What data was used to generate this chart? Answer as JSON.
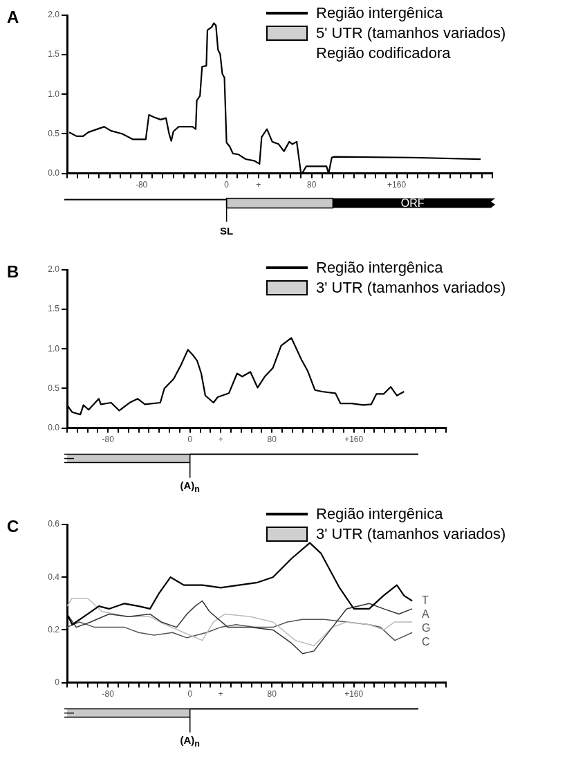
{
  "chart_data": [
    {
      "type": "line",
      "title": "A",
      "color": "#000000",
      "x": [
        -148,
        -141,
        -135,
        -130,
        -115,
        -109,
        -98,
        -88,
        -76,
        -73,
        -68,
        -62,
        -57,
        -54,
        -52,
        -50,
        -45,
        -32,
        -29,
        -28,
        -25,
        -23,
        -19,
        -18,
        -14,
        -12,
        -10,
        -8,
        -6,
        -4,
        -2,
        0,
        3,
        6,
        11,
        18,
        26,
        31,
        33,
        38,
        43,
        49,
        54,
        59,
        62,
        66,
        70,
        72,
        75,
        94,
        96,
        99,
        101,
        175,
        239
      ],
      "values": [
        0.52,
        0.47,
        0.47,
        0.52,
        0.59,
        0.54,
        0.5,
        0.43,
        0.43,
        0.74,
        0.71,
        0.68,
        0.7,
        0.5,
        0.41,
        0.53,
        0.59,
        0.59,
        0.56,
        0.92,
        0.98,
        1.35,
        1.36,
        1.81,
        1.85,
        1.9,
        1.87,
        1.56,
        1.51,
        1.26,
        1.21,
        0.39,
        0.34,
        0.25,
        0.24,
        0.18,
        0.16,
        0.12,
        0.46,
        0.56,
        0.4,
        0.37,
        0.28,
        0.4,
        0.37,
        0.4,
        0,
        0.02,
        0.09,
        0.09,
        0,
        0.2,
        0.21,
        0.2,
        0.18
      ],
      "xlim": [
        -150,
        250
      ],
      "xticks": [
        {
          "value": -150,
          "label": null
        },
        {
          "value": -140,
          "label": null
        },
        {
          "value": -130,
          "label": null
        },
        {
          "value": -120,
          "label": null
        },
        {
          "value": -110,
          "label": null
        },
        {
          "value": -100,
          "label": null
        },
        {
          "value": -90,
          "label": null
        },
        -80,
        {
          "value": -70,
          "label": null
        },
        {
          "value": -60,
          "label": null
        },
        {
          "value": -50,
          "label": null
        },
        {
          "value": -40,
          "label": null
        },
        {
          "value": -30,
          "label": null
        },
        {
          "value": -20,
          "label": null
        },
        {
          "value": -10,
          "label": null
        },
        0,
        {
          "value": 10,
          "label": null
        },
        {
          "value": 20,
          "label": null
        },
        {
          "value": 30,
          "label": "+"
        },
        {
          "value": 40,
          "label": null
        },
        {
          "value": 50,
          "label": null
        },
        {
          "value": 60,
          "label": null
        },
        {
          "value": 70,
          "label": null
        },
        80,
        {
          "value": 90,
          "label": null
        },
        {
          "value": 100,
          "label": null
        },
        {
          "value": 110,
          "label": null
        },
        {
          "value": 120,
          "label": null
        },
        {
          "value": 130,
          "label": null
        },
        {
          "value": 140,
          "label": null
        },
        {
          "value": 150,
          "label": null
        },
        {
          "value": 160,
          "label": "+160"
        },
        {
          "value": 170,
          "label": null
        },
        {
          "value": 180,
          "label": null
        },
        {
          "value": 190,
          "label": null
        },
        {
          "value": 200,
          "label": null
        },
        {
          "value": 210,
          "label": null
        },
        {
          "value": 220,
          "label": null
        },
        {
          "value": 230,
          "label": null
        },
        {
          "value": 240,
          "label": null
        },
        {
          "value": 250,
          "label": null
        }
      ],
      "ylim": [
        0,
        2
      ],
      "yticks": [
        {
          "value": 0,
          "label": "0.0"
        },
        0.5,
        {
          "value": 1,
          "label": "1.0"
        },
        1.5,
        {
          "value": 2,
          "label": "2.0"
        }
      ],
      "annotations": [
        "Região intergênica",
        "5' UTR (tamanhos variados)",
        "Região codificadora",
        "SL",
        "ORF"
      ]
    },
    {
      "type": "line",
      "title": "B",
      "color": "#000000",
      "x": [
        -120,
        -115,
        -107,
        -104,
        -99,
        -89,
        -87,
        -77,
        -69,
        -59,
        -51,
        -44,
        -29,
        -25,
        -16,
        -9,
        -2,
        3,
        7,
        11,
        15,
        23,
        27,
        38,
        46,
        51,
        59,
        66,
        73,
        81,
        89,
        99,
        109,
        115,
        122,
        129,
        142,
        147,
        158,
        169,
        177,
        182,
        189,
        196,
        202,
        209
      ],
      "values": [
        0.29,
        0.2,
        0.17,
        0.29,
        0.23,
        0.37,
        0.3,
        0.32,
        0.22,
        0.32,
        0.37,
        0.3,
        0.32,
        0.5,
        0.62,
        0.79,
        0.99,
        0.92,
        0.85,
        0.69,
        0.41,
        0.32,
        0.39,
        0.44,
        0.69,
        0.65,
        0.71,
        0.51,
        0.65,
        0.76,
        1.04,
        1.14,
        0.86,
        0.72,
        0.48,
        0.46,
        0.44,
        0.31,
        0.31,
        0.29,
        0.3,
        0.43,
        0.43,
        0.52,
        0.41,
        0.46
      ],
      "xlim": [
        -120,
        250
      ],
      "xticks": [
        {
          "value": -120,
          "label": null
        },
        {
          "value": -110,
          "label": null
        },
        {
          "value": -100,
          "label": null
        },
        {
          "value": -90,
          "label": null
        },
        -80,
        {
          "value": -70,
          "label": null
        },
        {
          "value": -60,
          "label": null
        },
        {
          "value": -50,
          "label": null
        },
        {
          "value": -40,
          "label": null
        },
        {
          "value": -30,
          "label": null
        },
        {
          "value": -20,
          "label": null
        },
        {
          "value": -10,
          "label": null
        },
        0,
        {
          "value": 10,
          "label": null
        },
        {
          "value": 20,
          "label": null
        },
        {
          "value": 30,
          "label": "+"
        },
        {
          "value": 40,
          "label": null
        },
        {
          "value": 50,
          "label": null
        },
        {
          "value": 60,
          "label": null
        },
        {
          "value": 70,
          "label": null
        },
        80,
        {
          "value": 90,
          "label": null
        },
        {
          "value": 100,
          "label": null
        },
        {
          "value": 110,
          "label": null
        },
        {
          "value": 120,
          "label": null
        },
        {
          "value": 130,
          "label": null
        },
        {
          "value": 140,
          "label": null
        },
        {
          "value": 150,
          "label": null
        },
        {
          "value": 160,
          "label": "+160"
        },
        {
          "value": 170,
          "label": null
        },
        {
          "value": 180,
          "label": null
        },
        {
          "value": 190,
          "label": null
        },
        {
          "value": 200,
          "label": null
        },
        {
          "value": 210,
          "label": null
        },
        {
          "value": 220,
          "label": null
        },
        {
          "value": 230,
          "label": null
        },
        {
          "value": 240,
          "label": null
        },
        {
          "value": 250,
          "label": null
        }
      ],
      "ylim": [
        0,
        2
      ],
      "yticks": [
        {
          "value": 0,
          "label": "0.0"
        },
        0.5,
        {
          "value": 1,
          "label": "1.0"
        },
        1.5,
        {
          "value": 2,
          "label": "2.0"
        }
      ],
      "annotations": [
        "Região intergênica",
        "3' UTR (tamanhos variados)",
        "(A)$_{n}$"
      ]
    },
    {
      "type": "line",
      "title": "C",
      "series": [
        {
          "name": "T",
          "color": "#000000",
          "x": [
            -120,
            -115,
            -100,
            -89,
            -79,
            -64,
            -50,
            -39,
            -30,
            -19,
            -6,
            12,
            30,
            48,
            66,
            81,
            99,
            117,
            128,
            146,
            160,
            175,
            189,
            202,
            209,
            217
          ],
          "values": [
            0.26,
            0.22,
            0.26,
            0.29,
            0.28,
            0.3,
            0.29,
            0.28,
            0.34,
            0.4,
            0.37,
            0.37,
            0.36,
            0.37,
            0.38,
            0.4,
            0.47,
            0.53,
            0.49,
            0.36,
            0.28,
            0.28,
            0.33,
            0.37,
            0.33,
            0.31
          ]
        },
        {
          "name": "A",
          "color": "#333333",
          "x": [
            -120,
            -111,
            -97,
            -79,
            -60,
            -39,
            -28,
            -13,
            -3,
            5,
            12,
            19,
            37,
            59,
            81,
            99,
            110,
            121,
            139,
            153,
            175,
            189,
            204,
            217
          ],
          "values": [
            0.26,
            0.21,
            0.23,
            0.26,
            0.25,
            0.26,
            0.23,
            0.21,
            0.26,
            0.29,
            0.31,
            0.27,
            0.21,
            0.21,
            0.2,
            0.15,
            0.11,
            0.12,
            0.21,
            0.28,
            0.3,
            0.28,
            0.26,
            0.28
          ]
        },
        {
          "name": "G",
          "color": "#bbbbbb",
          "x": [
            -120,
            -115,
            -100,
            -86,
            -60,
            -39,
            -24,
            -6,
            12,
            23,
            34,
            59,
            81,
            103,
            121,
            139,
            153,
            175,
            189,
            200,
            217
          ],
          "values": [
            0.29,
            0.32,
            0.32,
            0.27,
            0.25,
            0.25,
            0.22,
            0.19,
            0.16,
            0.23,
            0.26,
            0.25,
            0.23,
            0.16,
            0.14,
            0.21,
            0.23,
            0.22,
            0.2,
            0.23,
            0.23
          ]
        },
        {
          "name": "C",
          "color": "#555555",
          "x": [
            -120,
            -108,
            -93,
            -79,
            -64,
            -50,
            -35,
            -17,
            -3,
            16,
            30,
            45,
            63,
            81,
            95,
            110,
            131,
            153,
            175,
            186,
            200,
            217
          ],
          "values": [
            0.21,
            0.23,
            0.21,
            0.21,
            0.21,
            0.19,
            0.18,
            0.19,
            0.17,
            0.19,
            0.21,
            0.22,
            0.21,
            0.21,
            0.23,
            0.24,
            0.24,
            0.23,
            0.22,
            0.21,
            0.16,
            0.19
          ]
        }
      ],
      "xlim": [
        -120,
        250
      ],
      "xticks": [
        {
          "value": -120,
          "label": null
        },
        {
          "value": -110,
          "label": null
        },
        {
          "value": -100,
          "label": null
        },
        {
          "value": -90,
          "label": null
        },
        -80,
        {
          "value": -70,
          "label": null
        },
        {
          "value": -60,
          "label": null
        },
        {
          "value": -50,
          "label": null
        },
        {
          "value": -40,
          "label": null
        },
        {
          "value": -30,
          "label": null
        },
        {
          "value": -20,
          "label": null
        },
        {
          "value": -10,
          "label": null
        },
        0,
        {
          "value": 10,
          "label": null
        },
        {
          "value": 20,
          "label": null
        },
        {
          "value": 30,
          "label": "+"
        },
        {
          "value": 40,
          "label": null
        },
        {
          "value": 50,
          "label": null
        },
        {
          "value": 60,
          "label": null
        },
        {
          "value": 70,
          "label": null
        },
        80,
        {
          "value": 90,
          "label": null
        },
        {
          "value": 100,
          "label": null
        },
        {
          "value": 110,
          "label": null
        },
        {
          "value": 120,
          "label": null
        },
        {
          "value": 130,
          "label": null
        },
        {
          "value": 140,
          "label": null
        },
        {
          "value": 150,
          "label": null
        },
        {
          "value": 160,
          "label": "+160"
        },
        {
          "value": 170,
          "label": null
        },
        {
          "value": 180,
          "label": null
        },
        {
          "value": 190,
          "label": null
        },
        {
          "value": 200,
          "label": null
        },
        {
          "value": 210,
          "label": null
        },
        {
          "value": 220,
          "label": null
        },
        {
          "value": 230,
          "label": null
        },
        {
          "value": 240,
          "label": null
        },
        {
          "value": 250,
          "label": null
        }
      ],
      "ylim": [
        0,
        0.6
      ],
      "yticks": [
        0,
        0.2,
        0.4,
        0.6
      ],
      "annotations": [
        "Região intergênica",
        "3' UTR (tamanhos variados)",
        "(A)$_{n}$"
      ]
    }
  ]
}
